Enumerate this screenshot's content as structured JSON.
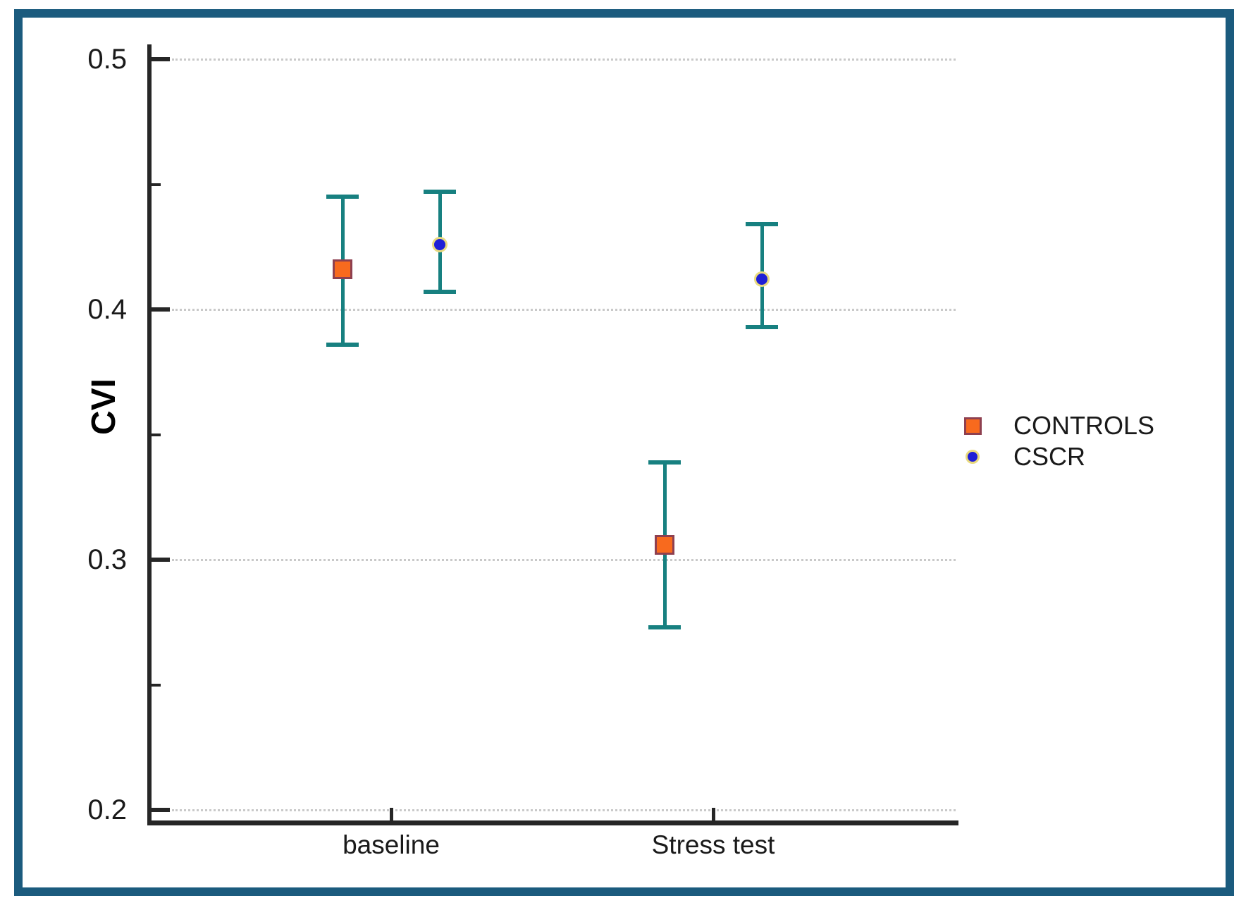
{
  "colors": {
    "frame_border": "#1B5B7E",
    "axis": "#262626",
    "grid": "#C9C9C9",
    "error_bar": "#178080",
    "controls_fill": "#F86A1E",
    "controls_border": "#8E4050",
    "cscr_fill": "#1F1FD6",
    "cscr_ring": "#E9DA7E",
    "text": "#1A1A1A"
  },
  "chart_data": {
    "type": "scatter",
    "title": "",
    "xlabel": "",
    "ylabel": "CVI",
    "categories": [
      "baseline",
      "Stress test"
    ],
    "ylim": [
      0.2,
      0.5
    ],
    "yticks": [
      0.5,
      0.4,
      0.3,
      0.2
    ],
    "ytick_labels": [
      "0.5",
      "0.4",
      "0.3",
      "0.2"
    ],
    "minor_yticks": [
      0.45,
      0.35,
      0.25
    ],
    "grid": "horizontal-dotted-at-major-ticks",
    "legend_position": "right-middle",
    "error_bars": "mean with confidence interval caps",
    "series": [
      {
        "name": "CONTROLS",
        "marker": "square",
        "points": [
          {
            "category": "baseline",
            "mean": 0.416,
            "ci_low": 0.386,
            "ci_high": 0.445
          },
          {
            "category": "Stress test",
            "mean": 0.306,
            "ci_low": 0.273,
            "ci_high": 0.339
          }
        ]
      },
      {
        "name": "CSCR",
        "marker": "circle",
        "points": [
          {
            "category": "baseline",
            "mean": 0.426,
            "ci_low": 0.407,
            "ci_high": 0.447
          },
          {
            "category": "Stress test",
            "mean": 0.412,
            "ci_low": 0.393,
            "ci_high": 0.434
          }
        ]
      }
    ]
  }
}
